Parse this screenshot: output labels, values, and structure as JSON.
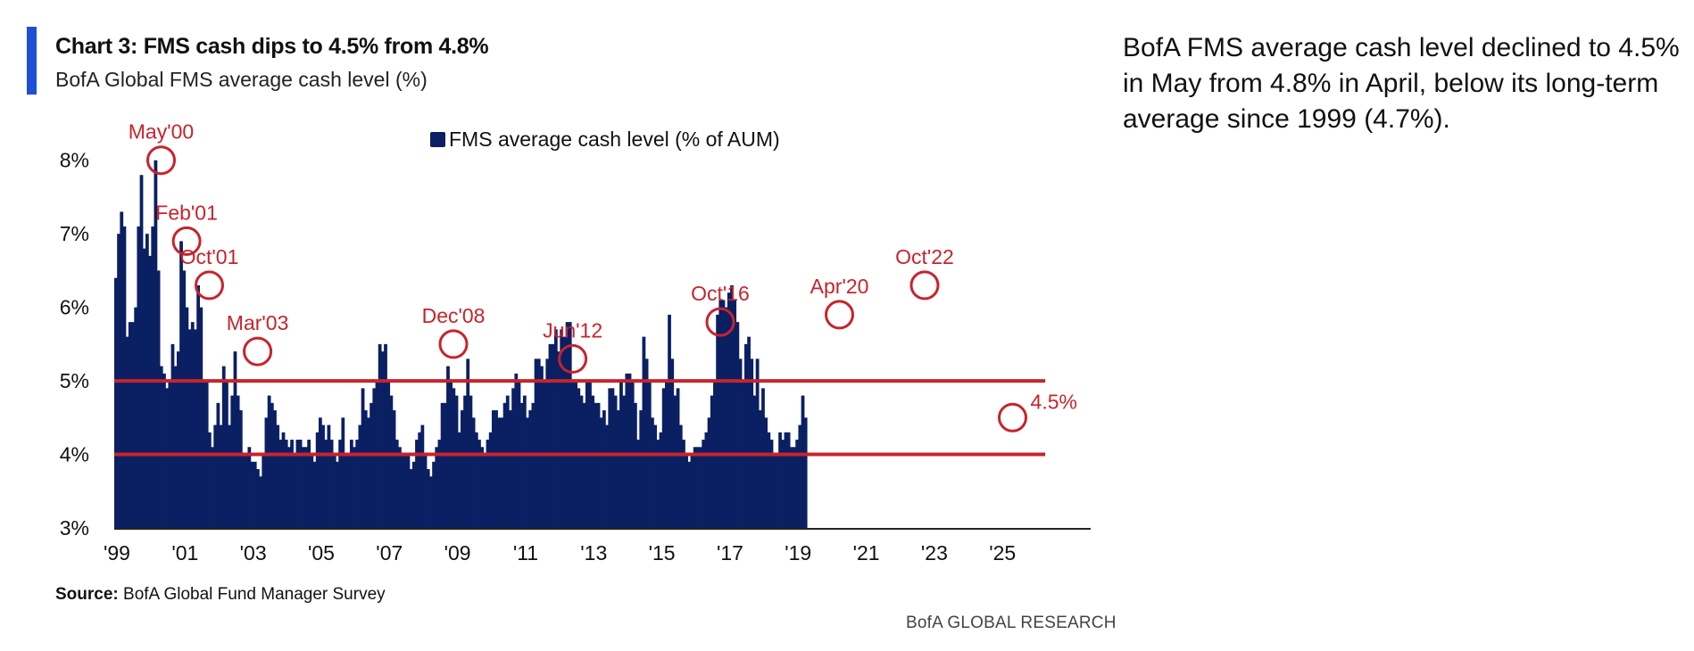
{
  "header": {
    "title": "Chart 3: FMS cash dips to 4.5% from 4.8%",
    "subtitle": "BofA Global FMS average cash level (%)"
  },
  "commentary": "BofA FMS average cash level declined to 4.5% in May from 4.8% in April, below its long-term average since 1999 (4.7%).",
  "footer": {
    "source_label": "Source:",
    "source_text": "BofA Global Fund Manager Survey",
    "brand": "BofA GLOBAL RESEARCH"
  },
  "colors": {
    "bars": "#0b1f63",
    "band_lines": "#c8232c",
    "annotations": "#c8232c",
    "accent": "#1f4fd6"
  },
  "chart_data": {
    "type": "bar",
    "title": "Chart 3: FMS cash dips to 4.5% from 4.8%",
    "subtitle": "BofA Global FMS average cash level (%)",
    "series": [
      {
        "name": "FMS average cash level (% of AUM)",
        "start": "1999-01",
        "frequency": "monthly",
        "values": [
          6.4,
          7.0,
          7.3,
          7.1,
          5.6,
          5.8,
          5.8,
          6.0,
          7.1,
          7.8,
          6.8,
          7.0,
          6.7,
          7.1,
          8.0,
          6.5,
          5.2,
          5.1,
          4.9,
          5.0,
          5.5,
          5.2,
          5.4,
          6.9,
          6.5,
          6.0,
          5.7,
          5.8,
          5.7,
          6.3,
          6.0,
          5.0,
          5.0,
          4.3,
          4.1,
          4.4,
          4.7,
          4.4,
          5.2,
          5.0,
          4.4,
          4.8,
          5.4,
          4.8,
          4.6,
          4.0,
          4.0,
          4.1,
          3.9,
          3.9,
          3.8,
          3.7,
          4.0,
          4.5,
          4.8,
          4.7,
          4.6,
          4.4,
          4.2,
          4.3,
          4.2,
          4.1,
          4.2,
          4.0,
          4.2,
          4.2,
          4.1,
          4.1,
          4.2,
          4.0,
          3.9,
          4.3,
          4.5,
          4.4,
          4.2,
          4.4,
          4.2,
          4.0,
          3.9,
          4.2,
          4.5,
          4.0,
          4.0,
          4.2,
          4.1,
          4.2,
          4.4,
          4.9,
          4.6,
          4.5,
          4.7,
          4.9,
          5.0,
          5.5,
          5.4,
          5.5,
          5.0,
          4.8,
          4.6,
          4.2,
          4.1,
          4.0,
          4.0,
          4.0,
          3.8,
          3.9,
          4.2,
          4.3,
          4.4,
          4.0,
          3.8,
          3.7,
          3.9,
          4.1,
          4.2,
          4.7,
          4.7,
          5.2,
          5.0,
          4.9,
          4.8,
          4.3,
          4.6,
          4.8,
          5.3,
          4.8,
          4.5,
          4.3,
          4.2,
          4.1,
          4.0,
          4.2,
          4.3,
          4.6,
          4.6,
          4.5,
          4.5,
          4.7,
          4.8,
          4.6,
          4.9,
          5.1,
          5.0,
          4.7,
          4.8,
          4.5,
          4.6,
          4.7,
          5.3,
          5.3,
          5.2,
          5.0,
          5.3,
          5.5,
          5.5,
          5.7,
          5.4,
          5.7,
          5.6,
          5.8,
          5.8,
          5.0,
          5.0,
          4.9,
          4.8,
          4.7,
          5.0,
          5.0,
          4.8,
          4.7,
          4.7,
          4.5,
          4.6,
          4.4,
          4.9,
          4.9,
          4.8,
          4.6,
          5.0,
          4.8,
          5.1,
          5.1,
          5.0,
          4.7,
          4.2,
          4.6,
          5.6,
          5.3,
          5.0,
          4.5,
          4.4,
          4.2,
          4.3,
          4.9,
          5.0,
          5.9,
          5.3,
          4.8,
          4.9,
          4.4,
          4.2,
          4.0,
          3.9,
          4.0,
          4.1,
          4.1,
          4.1,
          4.2,
          4.3,
          4.5,
          4.8,
          5.0,
          5.9,
          6.1,
          6.1,
          6.0,
          6.2,
          6.3,
          6.1,
          5.8,
          5.3,
          5.0,
          5.5,
          5.6,
          5.3,
          4.8,
          5.3,
          4.6,
          4.9,
          4.5,
          4.3,
          4.2,
          4.0,
          4.0,
          4.3,
          4.2,
          4.3,
          4.3,
          4.1,
          4.1,
          4.2,
          4.4,
          4.8,
          4.5
        ]
      }
    ],
    "legend": {
      "entries": [
        "FMS average cash level (% of AUM)"
      ],
      "placement": "top-center"
    },
    "x_ticks": [
      "'99",
      "'01",
      "'03",
      "'05",
      "'07",
      "'09",
      "'11",
      "'13",
      "'15",
      "'17",
      "'19",
      "'21",
      "'23",
      "'25"
    ],
    "x_tick_years": [
      1999,
      2001,
      2003,
      2005,
      2007,
      2009,
      2011,
      2013,
      2015,
      2017,
      2019,
      2021,
      2023,
      2025
    ],
    "y_ticks": [
      "3%",
      "4%",
      "5%",
      "6%",
      "7%",
      "8%"
    ],
    "y_tick_values": [
      3,
      4,
      5,
      6,
      7,
      8
    ],
    "ylim": [
      3,
      8.3
    ],
    "xlim": [
      "1999-01",
      "2027-09"
    ],
    "reference_lines": [
      5.0,
      4.0
    ],
    "annotations": [
      {
        "label": "May'00",
        "date": "2000-05",
        "value": 8.0
      },
      {
        "label": "Feb'01",
        "date": "2001-02",
        "value": 6.9
      },
      {
        "label": "Oct'01",
        "date": "2001-10",
        "value": 6.3
      },
      {
        "label": "Mar'03",
        "date": "2003-03",
        "value": 5.4
      },
      {
        "label": "Dec'08",
        "date": "2008-12",
        "value": 5.5
      },
      {
        "label": "Jun'12",
        "date": "2012-06",
        "value": 5.3
      },
      {
        "label": "Oct'16",
        "date": "2016-10",
        "value": 5.8
      },
      {
        "label": "Apr'20",
        "date": "2020-04",
        "value": 5.9
      },
      {
        "label": "Oct'22",
        "date": "2022-10",
        "value": 6.3
      },
      {
        "label": "4.5%",
        "date": "2025-05",
        "value": 4.5
      }
    ],
    "grid": false
  }
}
